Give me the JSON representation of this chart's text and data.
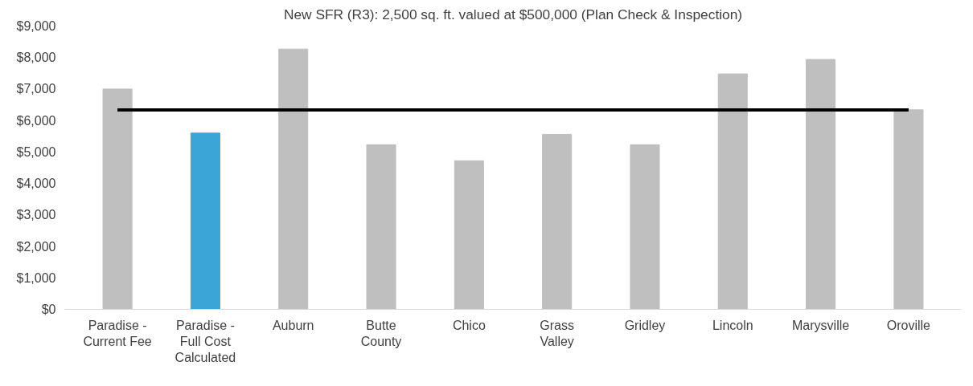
{
  "chart_data": {
    "type": "bar",
    "title": "New SFR (R3): 2,500 sq. ft. valued at $500,000 (Plan Check & Inspection)",
    "categories": [
      "Paradise -\nCurrent Fee",
      "Paradise -\nFull Cost\nCalculated",
      "Auburn",
      "Butte\nCounty",
      "Chico",
      "Grass\nValley",
      "Gridley",
      "Lincoln",
      "Marysville",
      "Oroville"
    ],
    "values": [
      7000,
      5600,
      8270,
      5230,
      4720,
      5560,
      5230,
      7480,
      7940,
      6340
    ],
    "colors": [
      "#bfbfbf",
      "#3ca5d8",
      "#bfbfbf",
      "#bfbfbf",
      "#bfbfbf",
      "#bfbfbf",
      "#bfbfbf",
      "#bfbfbf",
      "#bfbfbf",
      "#bfbfbf"
    ],
    "ylim": [
      0,
      9000
    ],
    "yticks": [
      {
        "value": 0,
        "label": "$0"
      },
      {
        "value": 1000,
        "label": "$1,000"
      },
      {
        "value": 2000,
        "label": "$2,000"
      },
      {
        "value": 3000,
        "label": "$3,000"
      },
      {
        "value": 4000,
        "label": "$4,000"
      },
      {
        "value": 5000,
        "label": "$5,000"
      },
      {
        "value": 6000,
        "label": "$6,000"
      },
      {
        "value": 7000,
        "label": "$7,000"
      },
      {
        "value": 8000,
        "label": "$8,000"
      },
      {
        "value": 9000,
        "label": "$9,000"
      }
    ],
    "ref_lines": [
      {
        "axis": "y",
        "value": 6337,
        "color": "#000000"
      }
    ],
    "grid": false
  }
}
